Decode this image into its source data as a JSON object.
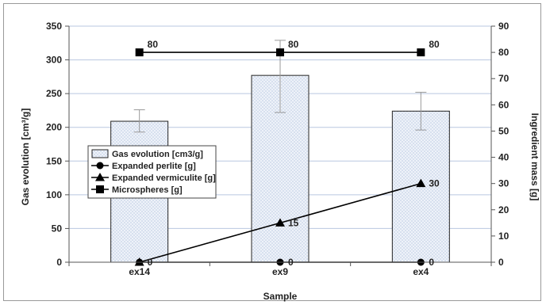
{
  "chart_data": {
    "type": "bar",
    "categories": [
      "ex14",
      "ex9",
      "ex4"
    ],
    "xlabel": "Sample",
    "ylabel": "Gas evolution [cm³/g]",
    "y2label": "Ingredient  mass [g]",
    "ylim": [
      0,
      350
    ],
    "y2lim": [
      0,
      90
    ],
    "yticks": [
      "0",
      "50",
      "100",
      "150",
      "200",
      "250",
      "300",
      "350"
    ],
    "y2ticks": [
      "0",
      "10",
      "20",
      "30",
      "40",
      "50",
      "60",
      "70",
      "80",
      "90"
    ],
    "grid": true,
    "legend_position": "left-middle",
    "series": [
      {
        "name": "Gas evolution [cm3/g]",
        "kind": "bar",
        "axis": "left",
        "values": [
          209,
          277,
          224
        ],
        "error": [
          [
            193,
            226
          ],
          [
            222,
            329
          ],
          [
            196,
            252
          ]
        ],
        "color": "#e9eef7"
      },
      {
        "name": "Expanded perlite [g]",
        "kind": "line",
        "marker": "circle",
        "axis": "right",
        "values": [
          0,
          0,
          0
        ],
        "labels": [
          "0",
          "0",
          "0"
        ],
        "color": "#000000"
      },
      {
        "name": "Expanded vermiculite [g]",
        "kind": "line",
        "marker": "triangle",
        "axis": "right",
        "values": [
          0,
          15,
          30
        ],
        "labels": [
          "",
          "15",
          "30"
        ],
        "color": "#000000"
      },
      {
        "name": "Microspheres [g]",
        "kind": "line",
        "marker": "square",
        "axis": "right",
        "values": [
          80,
          80,
          80
        ],
        "labels": [
          "80",
          "80",
          "80"
        ],
        "color": "#000000"
      }
    ]
  }
}
